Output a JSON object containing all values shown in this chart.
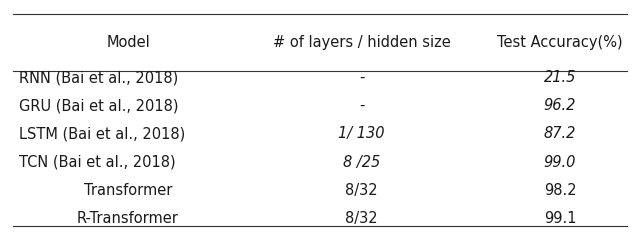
{
  "headers": [
    "Model",
    "# of layers / hidden size",
    "Test Accuracy(%)"
  ],
  "rows": [
    [
      "RNN (Bai et al., 2018)",
      "-",
      "21.5"
    ],
    [
      "GRU (Bai et al., 2018)",
      "-",
      "96.2"
    ],
    [
      "LSTM (Bai et al., 2018)",
      "1/ 130",
      "87.2"
    ],
    [
      "TCN (Bai et al., 2018)",
      "8 /25",
      "99.0"
    ],
    [
      "Transformer",
      "8/32",
      "98.2"
    ],
    [
      "R-Transformer",
      "8/32",
      "99.1"
    ]
  ],
  "italic_rows": [
    0,
    1,
    2,
    3
  ],
  "model_col_italic": [
    0,
    1,
    2,
    3
  ],
  "layers_col_italic": [
    2,
    3
  ],
  "accuracy_col_italic": [
    0,
    1,
    2,
    3
  ],
  "background_color": "#ffffff",
  "header_fontsize": 10.5,
  "row_fontsize": 10.5,
  "figsize": [
    6.4,
    2.35
  ],
  "dpi": 100,
  "line_color": "#333333",
  "text_color": "#1a1a1a"
}
